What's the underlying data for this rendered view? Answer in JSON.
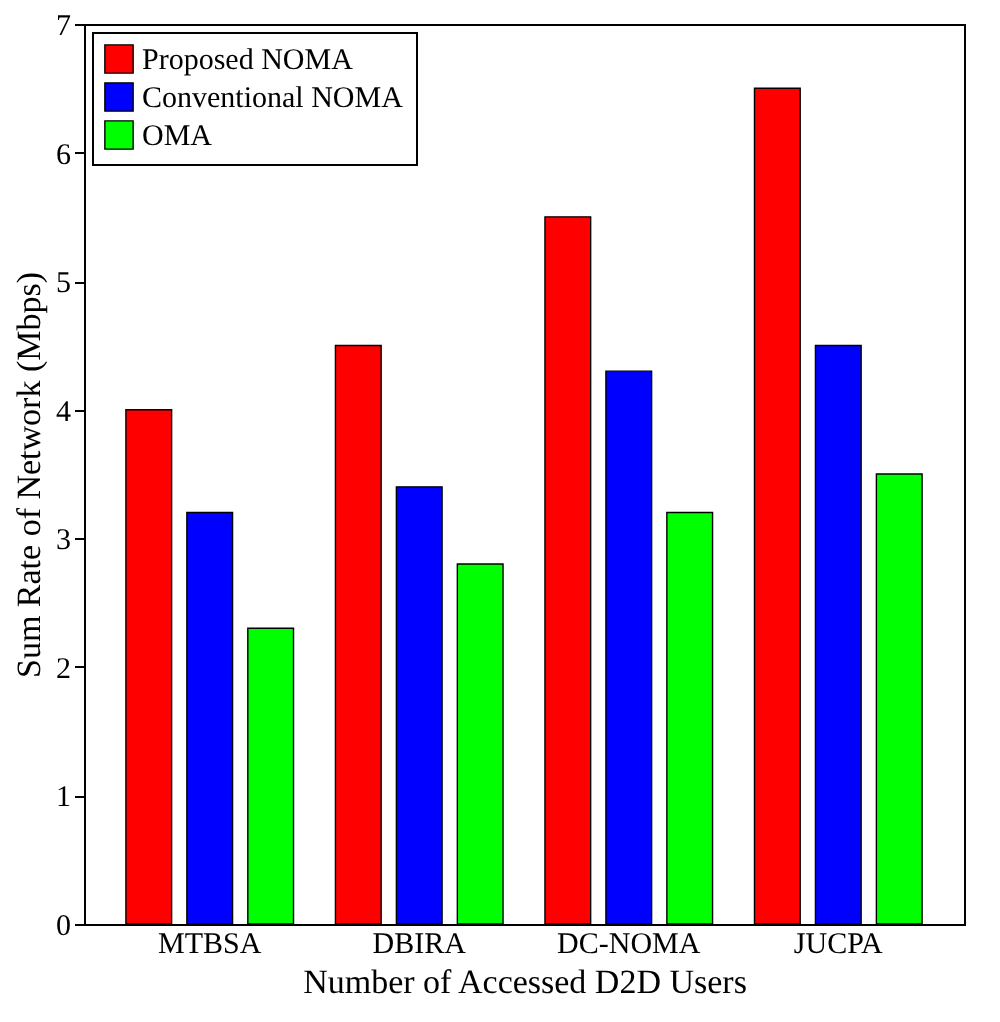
{
  "chart_data": {
    "type": "bar",
    "xlabel": "Number of Accessed D2D Users",
    "ylabel": "Sum Rate  of Network (Mbps)",
    "categories": [
      "MTBSA",
      "DBIRA",
      "DC-NOMA",
      "JUCPA"
    ],
    "series": [
      {
        "name": "Proposed NOMA",
        "color": "#ff0000",
        "values": [
          4.0,
          4.5,
          5.5,
          6.5
        ]
      },
      {
        "name": "Conventional NOMA",
        "color": "#0000ff",
        "values": [
          3.2,
          3.4,
          4.3,
          4.5
        ]
      },
      {
        "name": "OMA",
        "color": "#00ff00",
        "values": [
          2.3,
          2.8,
          3.2,
          3.5
        ]
      }
    ],
    "ylim": [
      0,
      7
    ],
    "yticks": [
      0,
      1,
      2,
      3,
      4,
      5,
      6,
      7
    ],
    "grid": false,
    "legend": "top left"
  }
}
